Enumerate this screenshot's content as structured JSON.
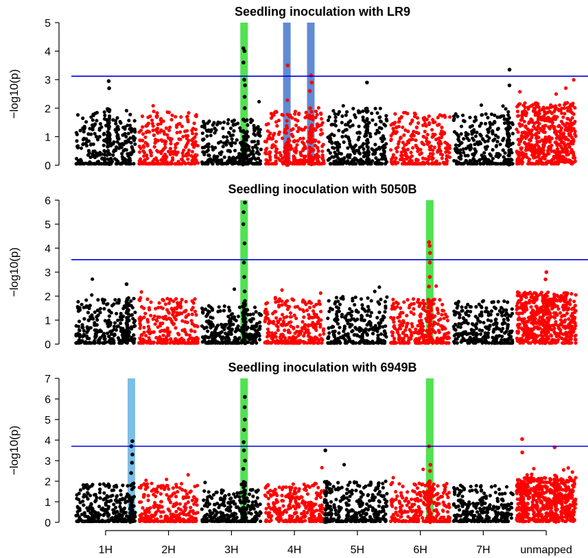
{
  "chart_data": {
    "type": "scatter",
    "subtype": "manhattan",
    "xlabel": "",
    "chromosomes": [
      {
        "name": "1H",
        "start": 0,
        "end": 100,
        "color": "#000000"
      },
      {
        "name": "2H",
        "start": 100,
        "end": 200,
        "color": "#ff0000"
      },
      {
        "name": "3H",
        "start": 200,
        "end": 300,
        "color": "#000000"
      },
      {
        "name": "4H",
        "start": 300,
        "end": 400,
        "color": "#ff0000"
      },
      {
        "name": "5H",
        "start": 400,
        "end": 500,
        "color": "#000000"
      },
      {
        "name": "6H",
        "start": 500,
        "end": 600,
        "color": "#ff0000"
      },
      {
        "name": "7H",
        "start": 600,
        "end": 700,
        "color": "#000000"
      },
      {
        "name": "unmapped",
        "start": 700,
        "end": 800,
        "color": "#ff0000"
      }
    ],
    "xlim": [
      0,
      800
    ],
    "panels": [
      {
        "title": "Seedling inoculation with LR9",
        "ylabel": "−log10(p)",
        "ylim": [
          0,
          5
        ],
        "yticks": [
          0,
          1,
          2,
          3,
          4,
          5
        ],
        "threshold": 3.12,
        "highlights": [
          {
            "x": 270,
            "color": "#33dd33"
          },
          {
            "x": 338,
            "color": "#4477cc"
          },
          {
            "x": 376,
            "color": "#4477cc"
          }
        ],
        "peaks": [
          {
            "x": 270,
            "values": [
              1.2,
              1.6,
              2.0,
              2.4,
              2.8,
              3.0,
              3.6,
              4.0,
              4.1
            ]
          },
          {
            "x": 338,
            "values": [
              0.8,
              1.3,
              3.5
            ]
          },
          {
            "x": 376,
            "values": [
              1.4,
              2.0,
              2.6,
              2.9,
              3.15
            ]
          },
          {
            "x": 690,
            "values": [
              3.35,
              2.8
            ]
          },
          {
            "x": 465,
            "values": [
              2.9
            ]
          },
          {
            "x": 55,
            "values": [
              2.95,
              2.7
            ]
          }
        ]
      },
      {
        "title": "Seedling inoculation with 5050B",
        "ylabel": "−log10(p)",
        "ylim": [
          0,
          6
        ],
        "yticks": [
          0,
          1,
          2,
          3,
          4,
          5,
          6
        ],
        "threshold": 3.52,
        "highlights": [
          {
            "x": 270,
            "color": "#33dd33"
          },
          {
            "x": 565,
            "color": "#33dd33"
          }
        ],
        "peaks": [
          {
            "x": 270,
            "values": [
              1.8,
              2.2,
              2.8,
              3.4,
              4.2,
              5.0,
              5.5,
              5.9
            ]
          },
          {
            "x": 565,
            "values": [
              1.8,
              2.4,
              2.8,
              3.4,
              3.8,
              4.1,
              4.25
            ]
          },
          {
            "x": 750,
            "values": [
              3.0,
              2.7
            ]
          },
          {
            "x": 85,
            "values": [
              2.5
            ]
          }
        ]
      },
      {
        "title": "Seedling inoculation with 6949B",
        "ylabel": "−log10(p)",
        "ylim": [
          0,
          7
        ],
        "yticks": [
          0,
          1,
          2,
          3,
          4,
          5,
          6,
          7
        ],
        "threshold": 3.7,
        "highlights": [
          {
            "x": 91,
            "color": "#66b3e0"
          },
          {
            "x": 270,
            "color": "#33dd33"
          },
          {
            "x": 565,
            "color": "#33dd33"
          }
        ],
        "peaks": [
          {
            "x": 91,
            "values": [
              1.2,
              1.8,
              2.4,
              2.9,
              3.3,
              3.7,
              3.95
            ]
          },
          {
            "x": 270,
            "values": [
              2.6,
              3.0,
              3.5,
              3.9,
              4.5,
              5.0,
              5.6,
              6.1
            ]
          },
          {
            "x": 565,
            "values": [
              2.0,
              2.5,
              2.8,
              3.7
            ]
          },
          {
            "x": 712,
            "values": [
              4.05,
              3.4
            ]
          },
          {
            "x": 765,
            "values": [
              3.65
            ]
          },
          {
            "x": 400,
            "values": [
              3.5
            ]
          }
        ]
      }
    ]
  }
}
